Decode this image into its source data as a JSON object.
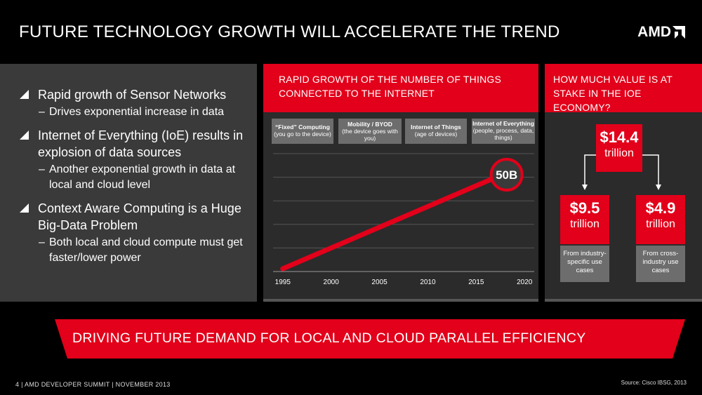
{
  "slide": {
    "title": "FUTURE TECHNOLOGY GROWTH WILL ACCELERATE THE TREND",
    "logo": "AMD",
    "footer": "4  |  AMD DEVELOPER SUMMIT  |  NOVEMBER 2013",
    "source": "Source: Cisco IBSG, 2013"
  },
  "bullets": [
    {
      "text": "Rapid growth of Sensor Networks",
      "sub": "Drives exponential increase in data"
    },
    {
      "text": "Internet of Everything (IoE) results in explosion of data sources",
      "sub": "Another exponential growth in data at local and cloud level"
    },
    {
      "text": "Context Aware Computing is a Huge Big-Data Problem",
      "sub": "Both local and cloud compute must get faster/lower power"
    }
  ],
  "middle": {
    "header": "RAPID GROWTH OF THE NUMBER OF THINGS CONNECTED TO THE INTERNET",
    "eras": [
      {
        "title": "“Fixed” Computing",
        "desc": "(you go to the device)"
      },
      {
        "title": "Mobility / BYOD",
        "desc": "(the device goes with you)"
      },
      {
        "title": "Internet of Things",
        "desc": "(age of devices)"
      },
      {
        "title": "Internet of Everything",
        "desc": "(people, process, data, things)"
      }
    ]
  },
  "chart_data": {
    "type": "line",
    "x": [
      1995,
      2020
    ],
    "y": [
      0,
      50
    ],
    "xticks": [
      "1995",
      "2000",
      "2005",
      "2010",
      "2015",
      "2020"
    ],
    "xlim": [
      1994,
      2021
    ],
    "ylim": [
      0,
      60
    ],
    "grid": true,
    "annotation": {
      "text": "50B",
      "x": 2018,
      "y": 50
    },
    "line_color": "#e2001a"
  },
  "right": {
    "header": "HOW MUCH VALUE IS AT STAKE IN THE IOE ECONOMY?",
    "total": {
      "amount": "$14.4",
      "unit": "trillion"
    },
    "left": {
      "amount": "$9.5",
      "unit": "trillion",
      "desc": "From industry-specific use cases"
    },
    "right": {
      "amount": "$4.9",
      "unit": "trillion",
      "desc": "From cross-industry use cases"
    }
  },
  "banner": {
    "text": "DRIVING FUTURE DEMAND FOR LOCAL AND CLOUD PARALLEL EFFICIENCY"
  },
  "colors": {
    "accent": "#e2001a",
    "panel": "#3a3a3a",
    "panel_dark": "#2b2b2b",
    "grey_box": "#6d6d6d"
  }
}
